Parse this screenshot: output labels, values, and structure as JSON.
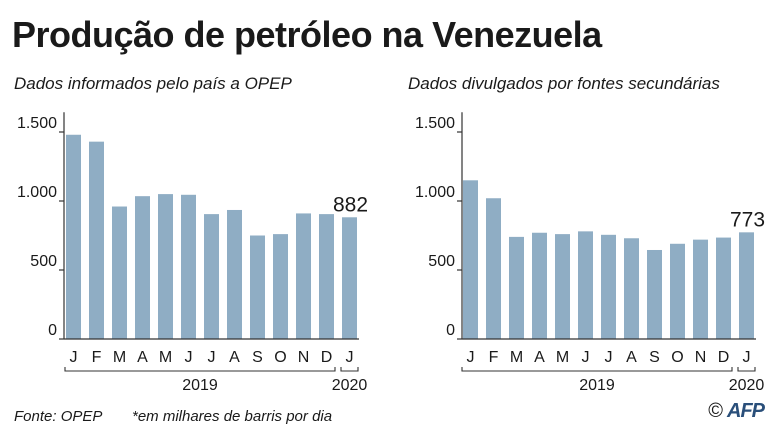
{
  "title": "Produção de petróleo na Venezuela",
  "footer": {
    "source": "Fonte: OPEP",
    "unit_note": "*em milhares de barris por dia",
    "credit_symbol": "©",
    "credit_logo": "AFP"
  },
  "colors": {
    "bar": "#8fadc4",
    "axis": "#333333",
    "text": "#1a1a1a"
  },
  "chart_data": [
    {
      "type": "bar",
      "title": "Dados informados pelo país a OPEP",
      "categories": [
        "J",
        "F",
        "M",
        "A",
        "M",
        "J",
        "J",
        "A",
        "S",
        "O",
        "N",
        "D",
        "J"
      ],
      "values": [
        1480,
        1430,
        960,
        1035,
        1050,
        1045,
        905,
        935,
        750,
        760,
        910,
        905,
        882
      ],
      "ylim": [
        0,
        1600
      ],
      "yticks": [
        0,
        500,
        1000,
        1500
      ],
      "ytick_labels": [
        "0",
        "500",
        "1.000",
        "1.500"
      ],
      "callout": "882",
      "year_groups": [
        {
          "label": "2019",
          "from": 0,
          "to": 11
        },
        {
          "label": "2020",
          "from": 12,
          "to": 12
        }
      ]
    },
    {
      "type": "bar",
      "title": "Dados divulgados por fontes secundárias",
      "categories": [
        "J",
        "F",
        "M",
        "A",
        "M",
        "J",
        "J",
        "A",
        "S",
        "O",
        "N",
        "D",
        "J"
      ],
      "values": [
        1150,
        1020,
        740,
        770,
        760,
        780,
        755,
        730,
        645,
        690,
        720,
        735,
        773
      ],
      "ylim": [
        0,
        1600
      ],
      "yticks": [
        0,
        500,
        1000,
        1500
      ],
      "ytick_labels": [
        "0",
        "500",
        "1.000",
        "1.500"
      ],
      "callout": "773",
      "year_groups": [
        {
          "label": "2019",
          "from": 0,
          "to": 11
        },
        {
          "label": "2020",
          "from": 12,
          "to": 12
        }
      ]
    }
  ]
}
